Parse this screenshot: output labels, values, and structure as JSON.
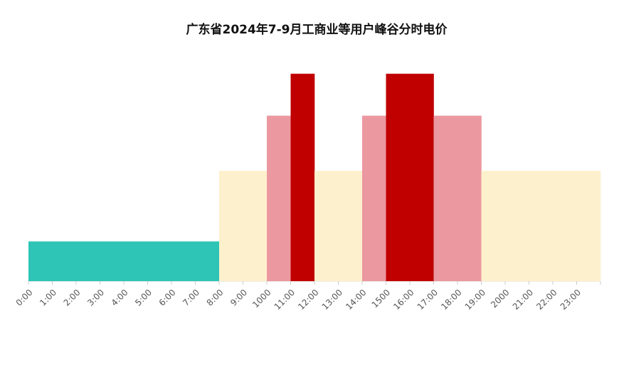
{
  "chart_data": {
    "type": "bar",
    "title": "广东省2024年7-9月工商业等用户峰谷分时电价",
    "categories": [
      "0:00",
      "1:00",
      "2:00",
      "3:00",
      "4:00",
      "5:00",
      "6:00",
      "7:00",
      "8:00",
      "9:00",
      "1000",
      "11:00",
      "12:00",
      "13:00",
      "14:00",
      "1500",
      "16:00",
      "17:00",
      "18:00",
      "19:00",
      "2000",
      "21:00",
      "22:00",
      "23:00"
    ],
    "values": [
      0.36,
      0.36,
      0.36,
      0.36,
      0.36,
      0.36,
      0.36,
      0.36,
      1,
      1,
      1.5,
      1.88,
      1,
      1,
      1.5,
      1.88,
      1.88,
      1.5,
      1.5,
      1,
      1,
      1,
      1,
      1
    ],
    "colors": [
      "#2ec4b6",
      "#2ec4b6",
      "#2ec4b6",
      "#2ec4b6",
      "#2ec4b6",
      "#2ec4b6",
      "#2ec4b6",
      "#2ec4b6",
      "#fdf0cc",
      "#fdf0cc",
      "#eb98a0",
      "#c00000",
      "#fdf0cc",
      "#fdf0cc",
      "#eb98a0",
      "#c00000",
      "#c00000",
      "#eb98a0",
      "#eb98a0",
      "#fdf0cc",
      "#fdf0cc",
      "#fdf0cc",
      "#fdf0cc",
      "#fdf0cc"
    ],
    "ylim": [
      0,
      2.2
    ]
  }
}
